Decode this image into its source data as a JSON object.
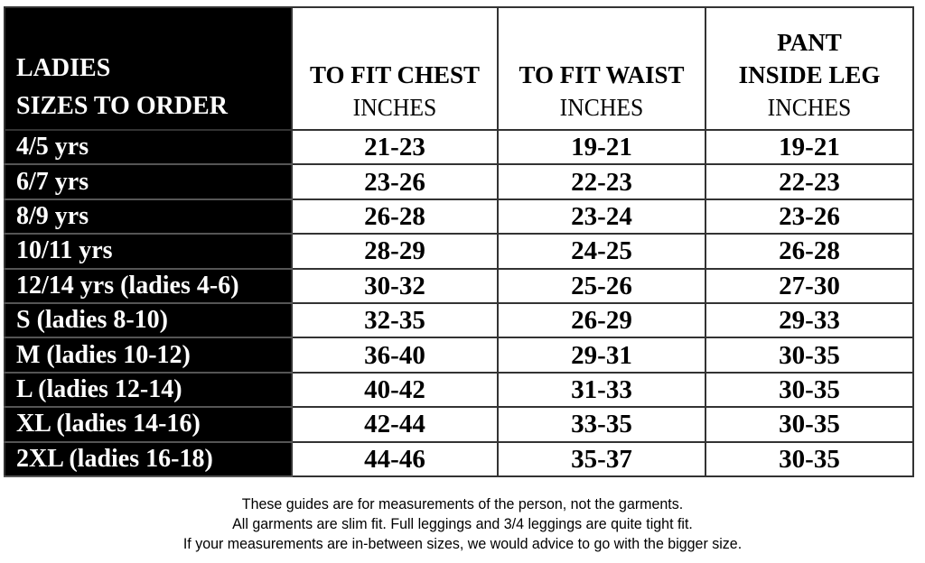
{
  "header": {
    "size_label_line1": "LADIES",
    "size_label_line2": "SIZES TO ORDER",
    "columns": [
      {
        "title": "TO FIT CHEST",
        "unit": "INCHES"
      },
      {
        "title": "TO FIT WAIST",
        "unit": "INCHES"
      },
      {
        "title_line1": "PANT",
        "title_line2": "INSIDE LEG",
        "unit": "INCHES"
      }
    ]
  },
  "rows": [
    {
      "size": "4/5 yrs",
      "chest": "21-23",
      "waist": "19-21",
      "leg": "19-21"
    },
    {
      "size": "6/7 yrs",
      "chest": "23-26",
      "waist": "22-23",
      "leg": "22-23"
    },
    {
      "size": "8/9 yrs",
      "chest": "26-28",
      "waist": "23-24",
      "leg": "23-26"
    },
    {
      "size": "10/11 yrs",
      "chest": "28-29",
      "waist": "24-25",
      "leg": "26-28"
    },
    {
      "size": "12/14 yrs (ladies 4-6)",
      "chest": "30-32",
      "waist": "25-26",
      "leg": "27-30"
    },
    {
      "size": "S (ladies 8-10)",
      "chest": "32-35",
      "waist": "26-29",
      "leg": "29-33"
    },
    {
      "size": "M (ladies 10-12)",
      "chest": "36-40",
      "waist": "29-31",
      "leg": "30-35"
    },
    {
      "size": "L (ladies 12-14)",
      "chest": "40-42",
      "waist": "31-33",
      "leg": "30-35"
    },
    {
      "size": "XL (ladies 14-16)",
      "chest": "42-44",
      "waist": "33-35",
      "leg": "30-35"
    },
    {
      "size": "2XL (ladies 16-18)",
      "chest": "44-46",
      "waist": "35-37",
      "leg": "30-35"
    }
  ],
  "notes": [
    "These guides are for measurements of the person, not the garments.",
    "All garments are slim fit. Full leggings and 3/4 leggings are quite tight fit.",
    "If your measurements are in-between sizes, we would advice to go with the bigger size."
  ]
}
